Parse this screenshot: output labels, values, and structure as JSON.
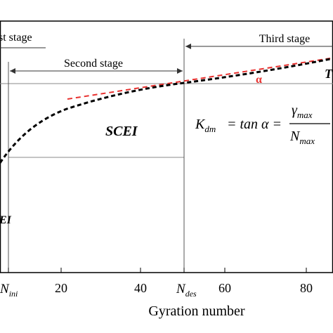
{
  "diagram": {
    "stage_labels": {
      "first": "st stage",
      "second": "Second stage",
      "third": "Third stage"
    },
    "region_labels": {
      "scei": "SCEI",
      "left_partial": "EI",
      "right_partial": "T"
    },
    "angle_label": "α",
    "formula": {
      "lhs_var": "K",
      "lhs_sub": "dm",
      "eq1": "= tan α =",
      "num_var": "γ",
      "num_sub": "max",
      "den_var": "N",
      "den_sub": "max"
    },
    "x_ticks": [
      {
        "kind": "sym",
        "var": "N",
        "sub": "ini"
      },
      {
        "kind": "num",
        "text": "20"
      },
      {
        "kind": "num",
        "text": "40"
      },
      {
        "kind": "sym",
        "var": "N",
        "sub": "des"
      },
      {
        "kind": "num",
        "text": "60"
      },
      {
        "kind": "num",
        "text": "80"
      }
    ],
    "x_axis_label": "Gyration number"
  },
  "colors": {
    "axis": "#000000",
    "grid_line": "#888888",
    "curve": "#000000",
    "tangent": "#e8312f",
    "angle_label": "#e8312f"
  }
}
